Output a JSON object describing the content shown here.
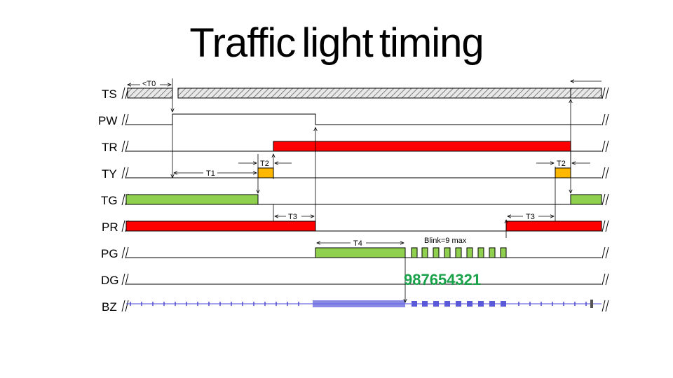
{
  "title": "Traffic light timing",
  "rows": [
    {
      "label": "TS"
    },
    {
      "label": "PW"
    },
    {
      "label": "TR"
    },
    {
      "label": "TY"
    },
    {
      "label": "TG"
    },
    {
      "label": "PR"
    },
    {
      "label": "PG"
    },
    {
      "label": "DG"
    },
    {
      "label": "BZ"
    }
  ],
  "annotations": {
    "t0": "<T0",
    "t1": "T1",
    "t2_left": "T2",
    "t2_right": "T2",
    "t3_left": "T3",
    "t3_right": "T3",
    "t4": "T4",
    "blink": "Blink=9 max"
  },
  "countdown": "987654321",
  "colors": {
    "red": "#ff0000",
    "yellow": "#ffb800",
    "green": "#8fd14f",
    "countdown": "#1aa24a",
    "buzzer": "#4a4ad6"
  }
}
